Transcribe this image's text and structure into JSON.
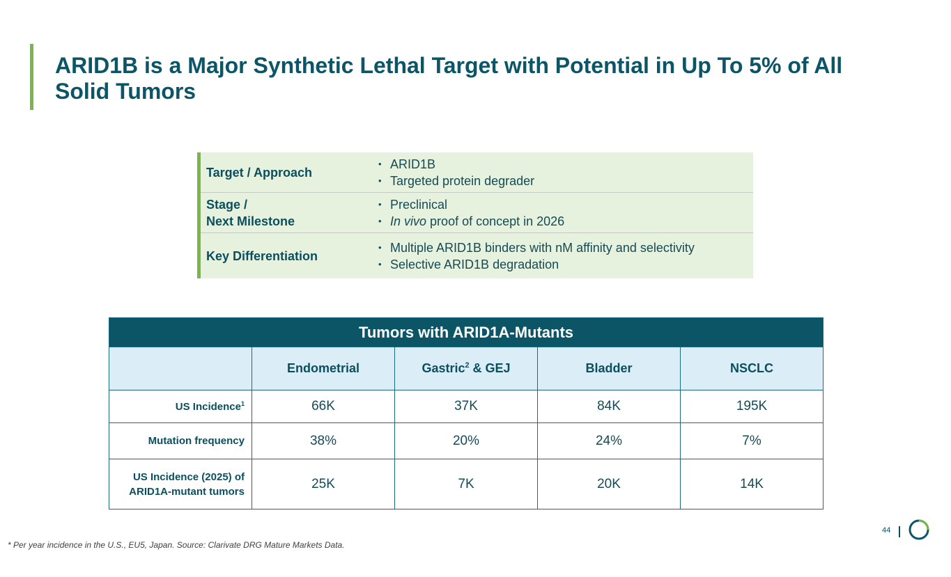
{
  "title": "ARID1B is a Major Synthetic Lethal Target with Potential in Up To 5% of All Solid Tumors",
  "info": [
    {
      "label": [
        "Target / Approach"
      ],
      "bullets": [
        "ARID1B",
        "Targeted protein degrader"
      ]
    },
    {
      "label": [
        "Stage /",
        "Next Milestone"
      ],
      "bullets": [
        "Preclinical",
        "proof of concept in 2026"
      ],
      "italic_prefix": "In vivo"
    },
    {
      "label": [
        "Key Differentiation"
      ],
      "bullets": [
        "Multiple ARID1B binders with nM affinity and selectivity",
        "Selective ARID1B degradation"
      ]
    }
  ],
  "table": {
    "header": "Tumors with ARID1A-Mutants",
    "columns": [
      {
        "text": "Endometrial"
      },
      {
        "text": "Gastric",
        "sup": "2",
        "rest": " & GEJ"
      },
      {
        "text": "Bladder"
      },
      {
        "text": "NSCLC"
      }
    ],
    "rows": [
      {
        "label": "US Incidence",
        "sup": "1",
        "values": [
          "66K",
          "37K",
          "84K",
          "195K"
        ]
      },
      {
        "label": "Mutation frequency",
        "values": [
          "38%",
          "20%",
          "24%",
          "7%"
        ]
      },
      {
        "label": "US Incidence (2025) of ARID1A-mutant tumors",
        "values": [
          "25K",
          "7K",
          "20K",
          "14K"
        ]
      }
    ]
  },
  "footnote": "* Per year incidence in the U.S., EU5, Japan. Source: Clarivate DRG Mature Markets Data.",
  "page_number": "44",
  "colors": {
    "accent_green": "#7ab648",
    "teal": "#0b5566",
    "light_green": "#e6f2dd",
    "light_blue": "#dbeef8"
  }
}
